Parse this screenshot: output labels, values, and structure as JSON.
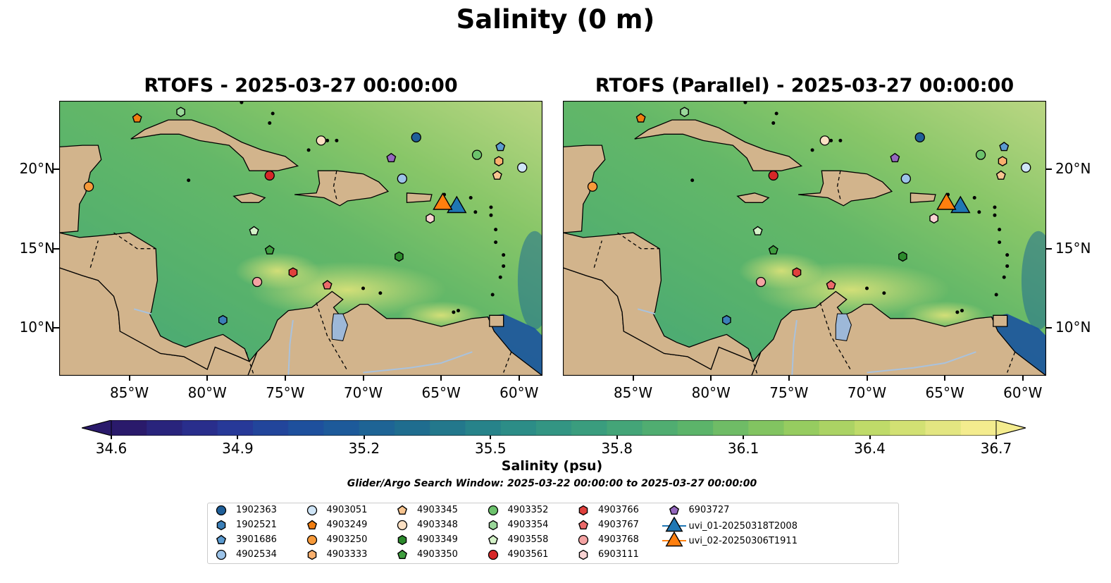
{
  "figure": {
    "title": "Salinity (0 m)",
    "window_text": "Glider/Argo Search Window: 2025-03-22 00:00:00 to 2025-03-27 00:00:00"
  },
  "panels": [
    {
      "title": "RTOFS - 2025-03-27 00:00:00"
    },
    {
      "title": "RTOFS (Parallel) - 2025-03-27 00:00:00"
    }
  ],
  "map_extent": {
    "lon_min": -89.5,
    "lon_max": -58.5,
    "lat_min": 7,
    "lat_max": 24.3
  },
  "x_ticks": [
    "85°W",
    "80°W",
    "75°W",
    "70°W",
    "65°W",
    "60°W"
  ],
  "x_tick_values": [
    -85,
    -80,
    -75,
    -70,
    -65,
    -60
  ],
  "y_ticks": [
    "20°N",
    "15°N",
    "10°N"
  ],
  "y_tick_values": [
    20,
    15,
    10
  ],
  "colorbar": {
    "label": "Salinity (psu)",
    "ticks": [
      "34.6",
      "34.9",
      "35.2",
      "35.5",
      "35.8",
      "36.1",
      "36.4",
      "36.7"
    ],
    "range": [
      34.6,
      36.7
    ],
    "colormap": "summer-like (dark navy → teal → green → pale yellow)",
    "colors": [
      "#2a1a6b",
      "#283597",
      "#1c549e",
      "#1f6d8f",
      "#2a8a88",
      "#3ca07d",
      "#5cb46a",
      "#8fc95e",
      "#c6dd6a",
      "#f4ec8e"
    ]
  },
  "land_color": "#d2b48c",
  "lake_color": "#9db8d8",
  "legend_items": [
    {
      "label": "1902363",
      "color": "#1f5f99",
      "marker": "circle"
    },
    {
      "label": "1902521",
      "color": "#3b7fb8",
      "marker": "hexagon"
    },
    {
      "label": "3901686",
      "color": "#5b9bd0",
      "marker": "pentagon"
    },
    {
      "label": "4902534",
      "color": "#9cc3e8",
      "marker": "circle"
    },
    {
      "label": "4903051",
      "color": "#cfe5f7",
      "marker": "circle"
    },
    {
      "label": "4903249",
      "color": "#f07d10",
      "marker": "pentagon"
    },
    {
      "label": "4903250",
      "color": "#f79a3a",
      "marker": "circle"
    },
    {
      "label": "4903333",
      "color": "#f9b06e",
      "marker": "hexagon"
    },
    {
      "label": "4903345",
      "color": "#f8c590",
      "marker": "pentagon"
    },
    {
      "label": "4903348",
      "color": "#fbe0c3",
      "marker": "circle"
    },
    {
      "label": "4903349",
      "color": "#2c8a2c",
      "marker": "hexagon"
    },
    {
      "label": "4903350",
      "color": "#3f9e3f",
      "marker": "pentagon"
    },
    {
      "label": "4903352",
      "color": "#6cc26c",
      "marker": "circle"
    },
    {
      "label": "4903354",
      "color": "#9ad89a",
      "marker": "hexagon"
    },
    {
      "label": "4903558",
      "color": "#d4f2c8",
      "marker": "pentagon"
    },
    {
      "label": "4903561",
      "color": "#d62728",
      "marker": "circle"
    },
    {
      "label": "4903766",
      "color": "#e0403c",
      "marker": "hexagon"
    },
    {
      "label": "4903767",
      "color": "#ec6a6a",
      "marker": "pentagon"
    },
    {
      "label": "4903768",
      "color": "#f4a3a3",
      "marker": "circle"
    },
    {
      "label": "6903111",
      "color": "#f9d3d3",
      "marker": "hexagon"
    },
    {
      "label": "6903727",
      "color": "#9467bd",
      "marker": "pentagon"
    },
    {
      "label": "uvi_01-20250318T2008",
      "color": "#1f77b4",
      "marker": "triangle"
    },
    {
      "label": "uvi_02-20250306T1911",
      "color": "#ff7f0e",
      "marker": "triangle"
    }
  ],
  "observations": [
    {
      "id": "1902363",
      "lon": -66.6,
      "lat": 22.0
    },
    {
      "id": "1902521",
      "lon": -79.0,
      "lat": 10.5
    },
    {
      "id": "3901686",
      "lon": -61.2,
      "lat": 21.4
    },
    {
      "id": "4902534",
      "lon": -67.5,
      "lat": 19.4
    },
    {
      "id": "4903051",
      "lon": -59.8,
      "lat": 20.1
    },
    {
      "id": "4903249",
      "lon": -84.5,
      "lat": 23.2
    },
    {
      "id": "4903250",
      "lon": -87.6,
      "lat": 18.9
    },
    {
      "id": "4903333",
      "lon": -61.3,
      "lat": 20.5
    },
    {
      "id": "4903345",
      "lon": -61.4,
      "lat": 19.6
    },
    {
      "id": "4903348",
      "lon": -72.7,
      "lat": 21.8
    },
    {
      "id": "4903349",
      "lon": -67.7,
      "lat": 14.5
    },
    {
      "id": "4903350",
      "lon": -76.0,
      "lat": 14.9
    },
    {
      "id": "4903352",
      "lon": -62.7,
      "lat": 20.9
    },
    {
      "id": "4903354",
      "lon": -81.7,
      "lat": 23.6
    },
    {
      "id": "4903558",
      "lon": -77.0,
      "lat": 16.1
    },
    {
      "id": "4903561",
      "lon": -76.0,
      "lat": 19.6
    },
    {
      "id": "4903766",
      "lon": -74.5,
      "lat": 13.5
    },
    {
      "id": "4903767",
      "lon": -72.3,
      "lat": 12.7
    },
    {
      "id": "4903768",
      "lon": -76.8,
      "lat": 12.9
    },
    {
      "id": "6903111",
      "lon": -65.7,
      "lat": 16.9
    },
    {
      "id": "6903727",
      "lon": -68.2,
      "lat": 20.7
    },
    {
      "id": "uvi_01-20250318T2008",
      "lon": -64.0,
      "lat": 17.6
    },
    {
      "id": "uvi_02-20250306T1911",
      "lon": -64.9,
      "lat": 17.8
    }
  ]
}
